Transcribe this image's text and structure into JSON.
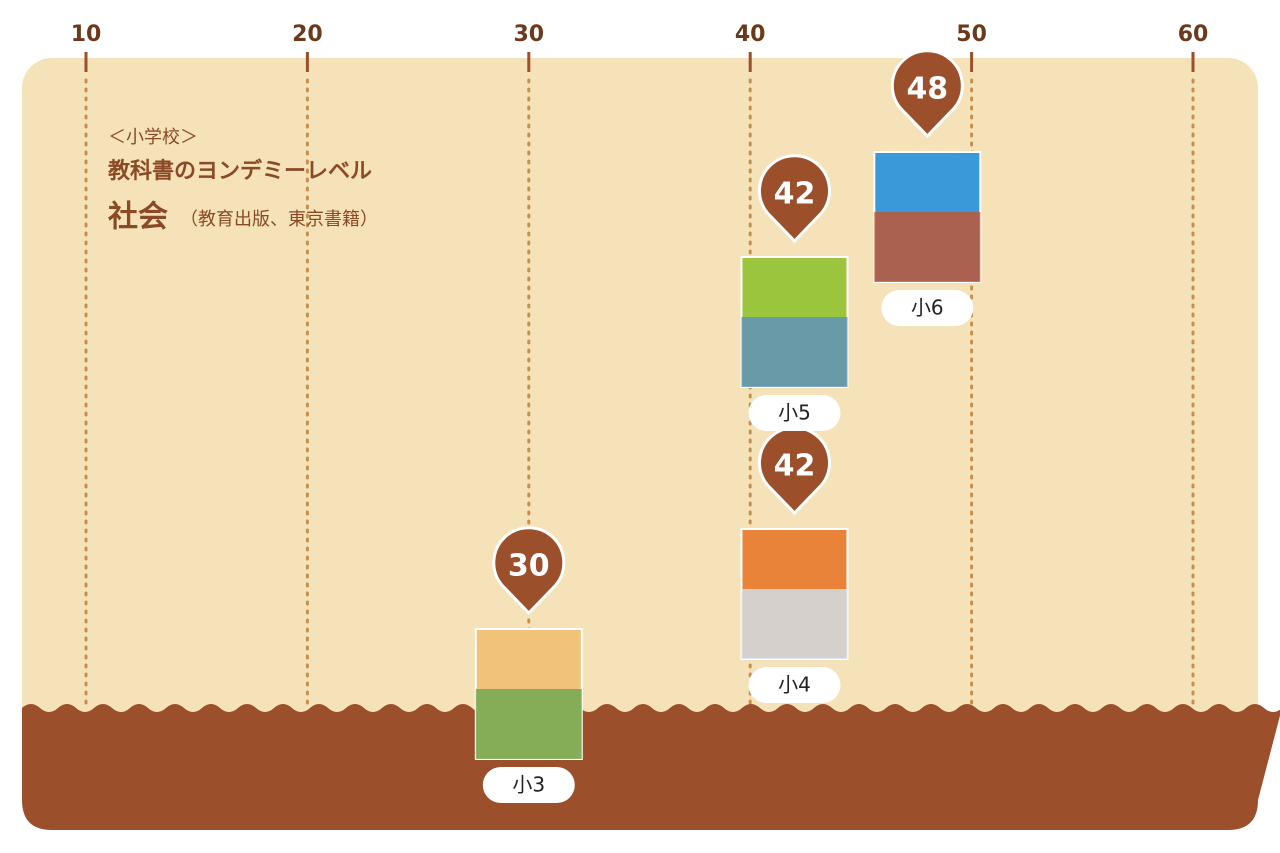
{
  "chart_data": {
    "type": "pin",
    "heading": "＜小学校＞",
    "title": "教科書のヨンデミーレベル",
    "subject": "社会",
    "publishers": "（教育出版、東京書籍）",
    "categories": [
      "小3",
      "小4",
      "小5",
      "小6"
    ],
    "values": [
      30,
      42,
      42,
      48
    ],
    "color": "#9b4f2a",
    "xlim": [
      10,
      60
    ],
    "xticks": [
      10,
      20,
      30,
      40,
      50,
      60
    ],
    "grid": true
  }
}
